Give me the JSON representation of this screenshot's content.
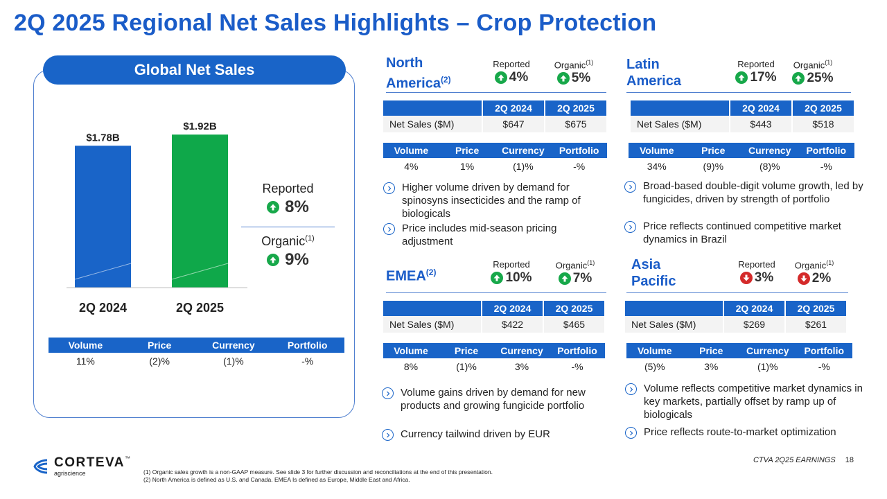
{
  "title": "2Q 2025 Regional Net Sales Highlights – Crop Protection",
  "global": {
    "header": "Global Net Sales",
    "reported_label": "Reported",
    "reported_value": "8%",
    "organic_label": "Organic",
    "organic_sup": "(1)",
    "organic_value": "9%",
    "drivers": {
      "headers": [
        "Volume",
        "Price",
        "Currency",
        "Portfolio"
      ],
      "values": [
        "11%",
        "(2)%",
        "(1)%",
        "-%"
      ]
    }
  },
  "chart_data": {
    "type": "bar",
    "title": "Global Net Sales",
    "categories": [
      "2Q 2024",
      "2Q 2025"
    ],
    "values": [
      1.78,
      1.92
    ],
    "data_labels": [
      "$1.78B",
      "$1.92B"
    ],
    "units": "$B",
    "ylim": [
      0,
      2.0
    ],
    "colors": [
      "#1964c8",
      "#0fa84a"
    ],
    "grid": false
  },
  "regions": {
    "north_america": {
      "name_line1": "North",
      "name_line2": "America",
      "name_sup": "(2)",
      "reported_label": "Reported",
      "reported_value": "4%",
      "organic_label": "Organic",
      "organic_sup": "(1)",
      "organic_value": "5%",
      "sales_headers": [
        "2Q 2024",
        "2Q 2025"
      ],
      "sales_row_label": "Net Sales ($M)",
      "sales_values": [
        "$647",
        "$675"
      ],
      "driver_headers": [
        "Volume",
        "Price",
        "Currency",
        "Portfolio"
      ],
      "driver_values": [
        "4%",
        "1%",
        "(1)%",
        "-%"
      ],
      "bullets": [
        "Higher volume driven by demand for spinosyns insecticides and the ramp of biologicals",
        "Price includes mid-season pricing adjustment"
      ]
    },
    "latin_america": {
      "name_line1": "Latin",
      "name_line2": "America",
      "reported_label": "Reported",
      "reported_value": "17%",
      "organic_label": "Organic",
      "organic_sup": "(1)",
      "organic_value": "25%",
      "sales_headers": [
        "2Q 2024",
        "2Q 2025"
      ],
      "sales_row_label": "Net Sales ($M)",
      "sales_values": [
        "$443",
        "$518"
      ],
      "driver_headers": [
        "Volume",
        "Price",
        "Currency",
        "Portfolio"
      ],
      "driver_values": [
        "34%",
        "(9)%",
        "(8)%",
        "-%"
      ],
      "bullets": [
        "Broad-based double-digit volume growth, led by fungicides, driven by strength of portfolio",
        "Price reflects continued competitive market dynamics in Brazil"
      ]
    },
    "emea": {
      "name_line1": "EMEA",
      "name_sup": "(2)",
      "reported_label": "Reported",
      "reported_value": "10%",
      "organic_label": "Organic",
      "organic_sup": "(1)",
      "organic_value": "7%",
      "sales_headers": [
        "2Q 2024",
        "2Q 2025"
      ],
      "sales_row_label": "Net Sales ($M)",
      "sales_values": [
        "$422",
        "$465"
      ],
      "driver_headers": [
        "Volume",
        "Price",
        "Currency",
        "Portfolio"
      ],
      "driver_values": [
        "8%",
        "(1)%",
        "3%",
        "-%"
      ],
      "bullets": [
        "Volume gains driven by demand for new products and growing fungicide portfolio",
        "Currency tailwind driven by EUR"
      ]
    },
    "asia_pacific": {
      "name_line1": "Asia",
      "name_line2": "Pacific",
      "reported_label": "Reported",
      "reported_value": "3%",
      "organic_label": "Organic",
      "organic_sup": "(1)",
      "organic_value": "2%",
      "sales_headers": [
        "2Q 2024",
        "2Q 2025"
      ],
      "sales_row_label": "Net Sales ($M)",
      "sales_values": [
        "$269",
        "$261"
      ],
      "driver_headers": [
        "Volume",
        "Price",
        "Currency",
        "Portfolio"
      ],
      "driver_values": [
        "(5)%",
        "3%",
        "(1)%",
        "-%"
      ],
      "bullets": [
        "Volume reflects competitive market dynamics in key markets, partially offset by ramp up of biologicals",
        "Price reflects route-to-market optimization"
      ]
    }
  },
  "footer": {
    "logo_word": "CORTEVA",
    "logo_tm": "™",
    "logo_sub": "agriscience",
    "footnote_1": "(1) Organic sales growth is a non-GAAP measure. See slide 3 for further discussion and reconciliations at the end of this presentation.",
    "footnote_2": "(2) North America is defined as U.S. and Canada. EMEA Is defined as Europe, Middle East and Africa.",
    "event": "CTVA 2Q25 EARNINGS",
    "page_number": "18"
  },
  "colors": {
    "title_blue": "#1a5cc8",
    "header_blue": "#1964c8",
    "bar_2024": "#1964c8",
    "bar_2025": "#0fa84a",
    "up_green": "#17a84a",
    "down_red": "#d42a2a"
  },
  "icons": {
    "up": "arrow-up-circle-icon",
    "down": "arrow-down-circle-icon",
    "bullet": "chevron-right-circle-icon"
  }
}
